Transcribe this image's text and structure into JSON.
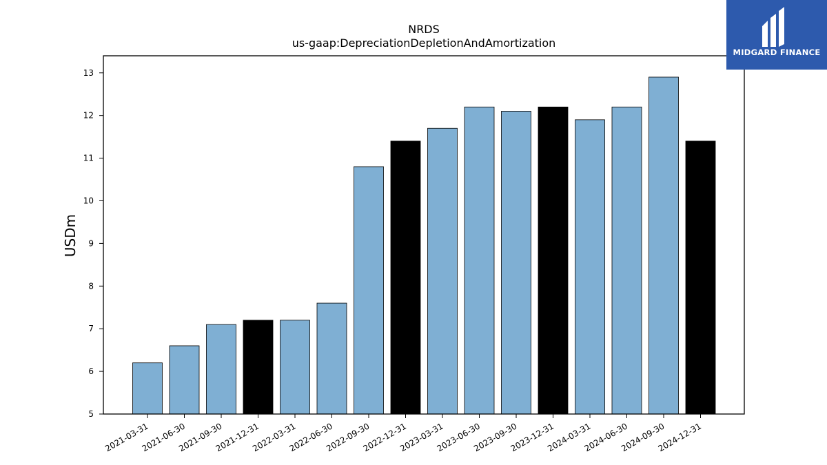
{
  "brand": {
    "name": "MIDGARD FINANCE",
    "color": "#2d5aad"
  },
  "chart_data": {
    "type": "bar",
    "title": "NRDS",
    "subtitle": "us-gaap:DepreciationDepletionAndAmortization",
    "xlabel": "",
    "ylabel": "USDm",
    "ylim": [
      5,
      13.4
    ],
    "yticks": [
      5,
      6,
      7,
      8,
      9,
      10,
      11,
      12,
      13
    ],
    "grid": false,
    "categories": [
      "2021-03-31",
      "2021-06-30",
      "2021-09-30",
      "2021-12-31",
      "2022-03-31",
      "2022-06-30",
      "2022-09-30",
      "2022-12-31",
      "2023-03-31",
      "2023-06-30",
      "2023-09-30",
      "2023-12-31",
      "2024-03-31",
      "2024-06-30",
      "2024-09-30",
      "2024-12-31"
    ],
    "values": [
      6.2,
      6.6,
      7.1,
      7.2,
      7.2,
      7.6,
      10.8,
      11.4,
      11.7,
      12.2,
      12.1,
      12.2,
      11.9,
      12.2,
      12.9,
      11.4
    ],
    "highlight": [
      false,
      false,
      false,
      true,
      false,
      false,
      false,
      true,
      false,
      false,
      false,
      true,
      false,
      false,
      false,
      true
    ],
    "colors": {
      "bar": "#7fafd3",
      "highlight": "#000000",
      "edge": "#000000"
    }
  }
}
